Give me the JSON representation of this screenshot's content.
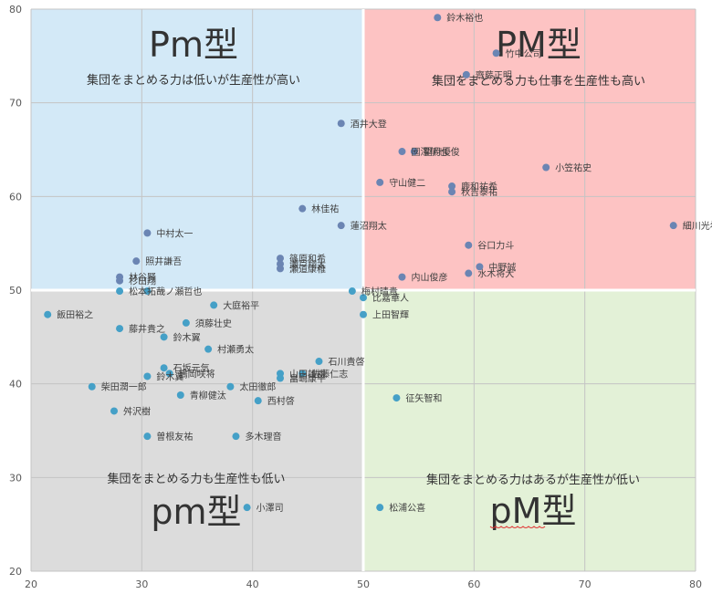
{
  "chart_data": {
    "type": "scatter",
    "title": "",
    "xlabel": "",
    "ylabel": "",
    "xlim": [
      20,
      80
    ],
    "ylim": [
      20,
      80
    ],
    "x_ticks": [
      "20",
      "30",
      "40",
      "50",
      "60",
      "70",
      "80"
    ],
    "y_ticks": [
      "20",
      "30",
      "40",
      "50",
      "60",
      "70",
      "80"
    ],
    "grid": true,
    "divider": {
      "x": 50,
      "y": 50
    },
    "quadrants": [
      {
        "id": "top-left",
        "title": "Pm型",
        "subtitle": "集団をまとめる力は低いが生産性が高い",
        "color": "#d3e9f7"
      },
      {
        "id": "top-right",
        "title": "PM型",
        "subtitle": "集団をまとめる力も仕事を生産性も高い",
        "color": "#fdc3c3"
      },
      {
        "id": "bottom-left",
        "title": "pm型",
        "subtitle": "集団をまとめる力も生産性も低い",
        "color": "#dcdcdc"
      },
      {
        "id": "bottom-right",
        "title": "pM型",
        "subtitle": "集団をまとめる力はあるが生産性が低い",
        "color": "#e3f1d7"
      }
    ],
    "colors": {
      "point_top": "#6b85b3",
      "point_bottom": "#45a0c7"
    },
    "points": [
      {
        "x": 56.7,
        "y": 79.1,
        "label": "鈴木裕也"
      },
      {
        "x": 62.0,
        "y": 75.3,
        "label": "竹中公司"
      },
      {
        "x": 59.3,
        "y": 73.0,
        "label": "齋藤正明"
      },
      {
        "x": 48.0,
        "y": 67.8,
        "label": "酒井大登"
      },
      {
        "x": 53.5,
        "y": 64.8,
        "label": "國澤郁也"
      },
      {
        "x": 54.6,
        "y": 64.8,
        "label": "望月優俊"
      },
      {
        "x": 66.5,
        "y": 63.1,
        "label": "小笠祐史"
      },
      {
        "x": 51.5,
        "y": 61.5,
        "label": "守山健二"
      },
      {
        "x": 58.0,
        "y": 61.1,
        "label": "鹿和祐希"
      },
      {
        "x": 58.0,
        "y": 60.5,
        "label": "秋吉泰祐"
      },
      {
        "x": 44.5,
        "y": 58.7,
        "label": "林佳祐"
      },
      {
        "x": 48.0,
        "y": 56.9,
        "label": "蓮沼翔太"
      },
      {
        "x": 30.5,
        "y": 56.1,
        "label": "中村太一"
      },
      {
        "x": 78.0,
        "y": 56.9,
        "label": "細川光希"
      },
      {
        "x": 59.5,
        "y": 54.8,
        "label": "谷口力斗"
      },
      {
        "x": 29.5,
        "y": 53.1,
        "label": "照井謙吾"
      },
      {
        "x": 42.5,
        "y": 53.4,
        "label": "篠原和希"
      },
      {
        "x": 42.5,
        "y": 52.8,
        "label": "瀬戸翔太"
      },
      {
        "x": 42.5,
        "y": 52.3,
        "label": "瀬道康稚"
      },
      {
        "x": 60.5,
        "y": 52.5,
        "label": "中野誠"
      },
      {
        "x": 59.5,
        "y": 51.8,
        "label": "水木将大"
      },
      {
        "x": 53.5,
        "y": 51.4,
        "label": "内山俊彦"
      },
      {
        "x": 28.0,
        "y": 51.4,
        "label": "林谷賢"
      },
      {
        "x": 28.0,
        "y": 51.0,
        "label": "杉山翔"
      },
      {
        "x": 28.0,
        "y": 49.9,
        "label": "松本拓哉"
      },
      {
        "x": 30.5,
        "y": 49.9,
        "label": "一ノ瀬哲也"
      },
      {
        "x": 49.0,
        "y": 49.9,
        "label": "梅村晴貴"
      },
      {
        "x": 50.0,
        "y": 49.2,
        "label": "比嘉華人"
      },
      {
        "x": 36.5,
        "y": 48.4,
        "label": "大庭裕平"
      },
      {
        "x": 21.5,
        "y": 47.4,
        "label": "飯田裕之"
      },
      {
        "x": 50.0,
        "y": 47.4,
        "label": "上田智輝"
      },
      {
        "x": 34.0,
        "y": 46.5,
        "label": "須藤壮史"
      },
      {
        "x": 28.0,
        "y": 45.9,
        "label": "藤井貴之"
      },
      {
        "x": 32.0,
        "y": 45.0,
        "label": "鈴木翼"
      },
      {
        "x": 36.0,
        "y": 43.7,
        "label": "村瀬勇太"
      },
      {
        "x": 46.0,
        "y": 42.4,
        "label": "石川貴啓"
      },
      {
        "x": 32.0,
        "y": 41.7,
        "label": "石坂元気"
      },
      {
        "x": 32.5,
        "y": 41.1,
        "label": "鶴岡咲将"
      },
      {
        "x": 30.5,
        "y": 40.8,
        "label": "鈴木翼"
      },
      {
        "x": 42.5,
        "y": 41.1,
        "label": "山田雄樹"
      },
      {
        "x": 44.5,
        "y": 41.1,
        "label": "佐藤仁志"
      },
      {
        "x": 42.5,
        "y": 40.6,
        "label": "畠嶋康平"
      },
      {
        "x": 25.5,
        "y": 39.7,
        "label": "柴田潤一郎"
      },
      {
        "x": 38.0,
        "y": 39.7,
        "label": "太田徹郎"
      },
      {
        "x": 33.5,
        "y": 38.8,
        "label": "青柳健汰"
      },
      {
        "x": 40.5,
        "y": 38.2,
        "label": "西村啓"
      },
      {
        "x": 53.0,
        "y": 38.5,
        "label": "征矢智和"
      },
      {
        "x": 27.5,
        "y": 37.1,
        "label": "舛沢樹"
      },
      {
        "x": 30.5,
        "y": 34.4,
        "label": "曽根友祐"
      },
      {
        "x": 38.5,
        "y": 34.4,
        "label": "多木理音"
      },
      {
        "x": 39.5,
        "y": 26.8,
        "label": "小澤司"
      },
      {
        "x": 51.5,
        "y": 26.8,
        "label": "松浦公喜"
      }
    ]
  }
}
